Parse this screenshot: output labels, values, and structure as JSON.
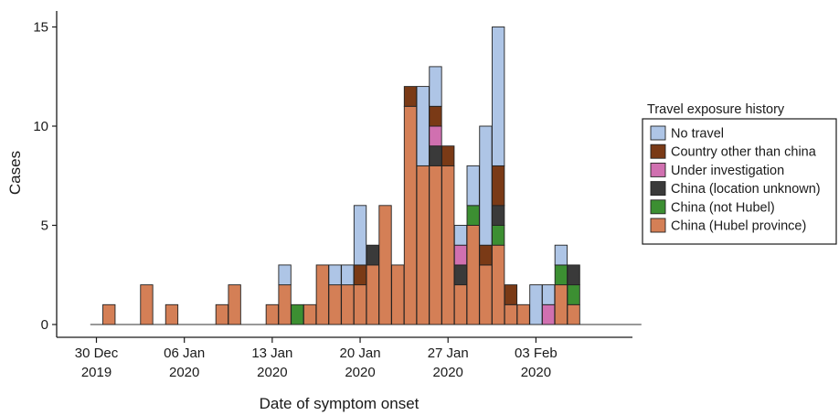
{
  "chart_data": {
    "type": "bar",
    "stacked": true,
    "xlabel": "Date of symptom onset",
    "ylabel": "Cases",
    "ylim": [
      0,
      15.8
    ],
    "yticks": [
      0,
      5,
      10,
      15
    ],
    "x_start": "30 Dec 2019",
    "x_ticks": [
      {
        "day": 0,
        "line1": "30 Dec",
        "line2": "2019"
      },
      {
        "day": 7,
        "line1": "06 Jan",
        "line2": "2020"
      },
      {
        "day": 14,
        "line1": "13 Jan",
        "line2": "2020"
      },
      {
        "day": 21,
        "line1": "20 Jan",
        "line2": "2020"
      },
      {
        "day": 28,
        "line1": "27 Jan",
        "line2": "2020"
      },
      {
        "day": 35,
        "line1": "03 Feb",
        "line2": "2020"
      }
    ],
    "grid": false,
    "legend": {
      "title": "Travel exposure history",
      "position": "right"
    },
    "series": [
      {
        "name": "China (Hubel province)",
        "color": "#d47f56",
        "values": [
          0,
          1,
          0,
          0,
          2,
          0,
          1,
          0,
          0,
          0,
          1,
          2,
          0,
          0,
          1,
          2,
          0,
          1,
          3,
          2,
          2,
          2,
          3,
          6,
          3,
          11,
          8,
          8,
          8,
          2,
          5,
          3,
          4,
          1,
          1,
          0,
          0,
          2,
          1,
          0,
          0
        ]
      },
      {
        "name": "China (not Hubel)",
        "color": "#3c8f32",
        "values": [
          0,
          0,
          0,
          0,
          0,
          0,
          0,
          0,
          0,
          0,
          0,
          0,
          0,
          0,
          0,
          0,
          1,
          0,
          0,
          0,
          0,
          0,
          0,
          0,
          0,
          0,
          0,
          0,
          0,
          0,
          1,
          0,
          1,
          0,
          0,
          0,
          0,
          1,
          1,
          0,
          0
        ]
      },
      {
        "name": "China (location unknown)",
        "color": "#3a3a3a",
        "values": [
          0,
          0,
          0,
          0,
          0,
          0,
          0,
          0,
          0,
          0,
          0,
          0,
          0,
          0,
          0,
          0,
          0,
          0,
          0,
          0,
          0,
          0,
          1,
          0,
          0,
          0,
          0,
          1,
          0,
          1,
          0,
          0,
          1,
          0,
          0,
          0,
          0,
          0,
          1,
          0,
          0
        ]
      },
      {
        "name": "Under investigation",
        "color": "#d070b0",
        "values": [
          0,
          0,
          0,
          0,
          0,
          0,
          0,
          0,
          0,
          0,
          0,
          0,
          0,
          0,
          0,
          0,
          0,
          0,
          0,
          0,
          0,
          0,
          0,
          0,
          0,
          0,
          0,
          1,
          0,
          1,
          0,
          0,
          0,
          0,
          0,
          0,
          1,
          0,
          0,
          0,
          0
        ]
      },
      {
        "name": "Country other than china",
        "color": "#7a3a16",
        "values": [
          0,
          0,
          0,
          0,
          0,
          0,
          0,
          0,
          0,
          0,
          0,
          0,
          0,
          0,
          0,
          0,
          0,
          0,
          0,
          0,
          0,
          1,
          0,
          0,
          0,
          1,
          0,
          1,
          1,
          0,
          0,
          1,
          2,
          1,
          0,
          0,
          0,
          0,
          0,
          0,
          0
        ]
      },
      {
        "name": "No travel",
        "color": "#aec5e6",
        "values": [
          0,
          0,
          0,
          0,
          0,
          0,
          0,
          0,
          0,
          0,
          0,
          0,
          0,
          0,
          0,
          1,
          0,
          0,
          0,
          1,
          1,
          3,
          0,
          0,
          0,
          0,
          4,
          2,
          0,
          1,
          2,
          6,
          7,
          0,
          0,
          2,
          1,
          1,
          0,
          0,
          0
        ]
      }
    ]
  }
}
